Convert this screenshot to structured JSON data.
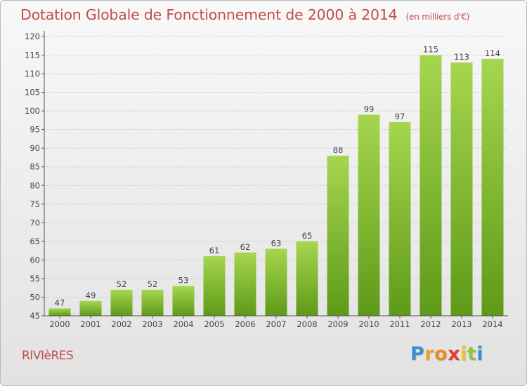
{
  "header": {
    "title": "Dotation Globale de Fonctionnement de 2000 à 2014",
    "unit": "(en milliers d'€)"
  },
  "footer": {
    "commune": "RIVIèRES",
    "logo_letters": [
      "P",
      "r",
      "o",
      "x",
      "i",
      "t",
      "i"
    ],
    "logo_colors": [
      "#3b8fd0",
      "#f0a020",
      "#f08a1e",
      "#e0402a",
      "#f0c020",
      "#8cc63f",
      "#3b8fd0"
    ]
  },
  "colors": {
    "bar_top": "#a6d64f",
    "bar_bottom": "#5e9a18",
    "title": "#c44c4c",
    "grid": "#c9c9c9"
  },
  "chart_data": {
    "type": "bar",
    "categories": [
      "2000",
      "2001",
      "2002",
      "2003",
      "2004",
      "2005",
      "2006",
      "2007",
      "2008",
      "2009",
      "2010",
      "2011",
      "2012",
      "2013",
      "2014"
    ],
    "values": [
      47,
      49,
      52,
      52,
      53,
      61,
      62,
      63,
      65,
      88,
      99,
      97,
      115,
      113,
      114
    ],
    "data_labels": [
      "47",
      "49",
      "52",
      "52",
      "53",
      "61",
      "62",
      "63",
      "65",
      "88",
      "99",
      "97",
      "115",
      "113",
      "114"
    ],
    "ylim": [
      45,
      120
    ],
    "yticks": [
      45,
      50,
      55,
      60,
      65,
      70,
      75,
      80,
      85,
      90,
      95,
      100,
      105,
      110,
      115,
      120
    ],
    "grid": true,
    "title": "Dotation Globale de Fonctionnement de 2000 à 2014",
    "xlabel": "",
    "ylabel": ""
  }
}
